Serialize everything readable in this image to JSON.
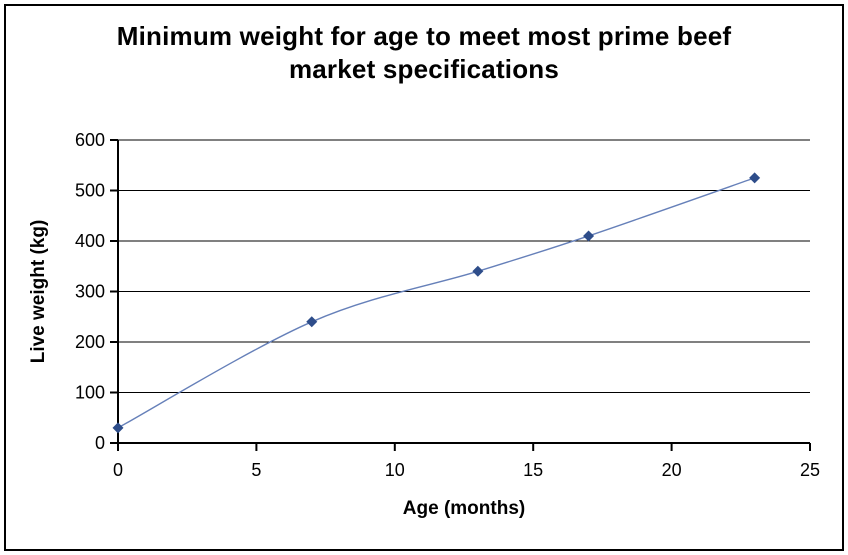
{
  "figure": {
    "title_line1": "Minimum weight for age to meet most prime beef",
    "title_line2": "market specifications"
  },
  "chart_data": {
    "type": "line",
    "smoothed": true,
    "title": "Minimum weight for age to meet most prime beef market specifications",
    "xlabel": "Age (months)",
    "ylabel": "Live weight (kg)",
    "x": [
      0,
      7,
      13,
      17,
      23
    ],
    "y": [
      30,
      240,
      340,
      410,
      525
    ],
    "xlim": [
      0,
      25
    ],
    "ylim": [
      0,
      600
    ],
    "x_ticks": [
      0,
      5,
      10,
      15,
      20,
      25
    ],
    "y_ticks": [
      0,
      100,
      200,
      300,
      400,
      500,
      600
    ],
    "grid": "horizontal",
    "legend": "none",
    "marker_shape": "diamond",
    "colors": {
      "line": "#6680b9",
      "marker": "#2e4d8a",
      "axis": "#000000",
      "gridline": "#000000",
      "text": "#000000",
      "background": "#ffffff"
    }
  }
}
